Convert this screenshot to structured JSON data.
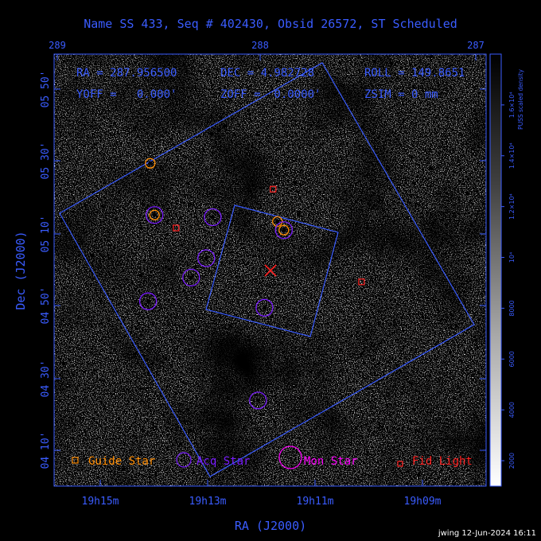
{
  "header": {
    "title": "Name SS 433, Seq # 402430, Obsid 26572, ST Scheduled"
  },
  "pointing": {
    "ra_text": "RA = 287.956500",
    "dec_text": "DEC = 4.982728",
    "roll_text": "ROLL = 149.8651",
    "yoff_text": "YOFF =   0.000'",
    "zoff_text": "ZOFF =  0.0000'",
    "zsim_text": "ZSIM = 0 mm"
  },
  "axes": {
    "xlabel": "RA (J2000)",
    "ylabel": "Dec (J2000)",
    "bottom_ticks": [
      "19h15m",
      "19h13m",
      "19h11m",
      "19h09m"
    ],
    "top_ticks": [
      "289",
      "288",
      "287"
    ],
    "left_ticks": [
      "04 10'",
      "04 30'",
      "04 50'",
      "05 10'",
      "05 30'",
      "05 50'"
    ]
  },
  "colorbar": {
    "label": "PUSS scaled density",
    "ticks": [
      "2000",
      "4000",
      "6000",
      "8000",
      "10⁴",
      "1.2×10⁴",
      "1.4×10⁴",
      "1.6×10⁴"
    ]
  },
  "legend": {
    "guide": "Guide Star",
    "acq": "Acq Star",
    "mon": "Mon Star",
    "fid": "Fid Light"
  },
  "footer": {
    "stamp": "jwing 12-Jun-2024 16:11"
  },
  "colors": {
    "blue": "#3a5cff",
    "guide": "#ff8c00",
    "acq": "#7a1cff",
    "mon": "#ff00ff",
    "fid": "#ff2020",
    "target": "#ff2020"
  },
  "chart_data": {
    "type": "scatter",
    "title": "Name SS 433, Seq # 402430, Obsid 26572, ST Scheduled",
    "xlabel": "RA (J2000)",
    "ylabel": "Dec (J2000)",
    "target": {
      "ra_deg": 287.9565,
      "dec_deg": 4.982728,
      "roll_deg": 149.8651
    },
    "guide_stars": [
      {
        "ra_deg": 288.51,
        "dec_deg": 5.48
      },
      {
        "ra_deg": 288.49,
        "dec_deg": 5.24
      },
      {
        "ra_deg": 287.92,
        "dec_deg": 5.21
      },
      {
        "ra_deg": 287.89,
        "dec_deg": 5.17
      }
    ],
    "acq_stars": [
      {
        "ra_deg": 288.49,
        "dec_deg": 5.24
      },
      {
        "ra_deg": 288.22,
        "dec_deg": 5.23
      },
      {
        "ra_deg": 287.89,
        "dec_deg": 5.17
      },
      {
        "ra_deg": 288.25,
        "dec_deg": 5.04
      },
      {
        "ra_deg": 288.32,
        "dec_deg": 4.95
      },
      {
        "ra_deg": 288.52,
        "dec_deg": 4.84
      },
      {
        "ra_deg": 287.98,
        "dec_deg": 4.81
      },
      {
        "ra_deg": 288.01,
        "dec_deg": 4.38
      }
    ],
    "fid_lights": [
      {
        "ra_deg": 287.94,
        "dec_deg": 5.36
      },
      {
        "ra_deg": 288.39,
        "dec_deg": 5.18
      },
      {
        "ra_deg": 287.53,
        "dec_deg": 4.93
      }
    ],
    "colorbar_range": [
      1000,
      18000
    ]
  }
}
